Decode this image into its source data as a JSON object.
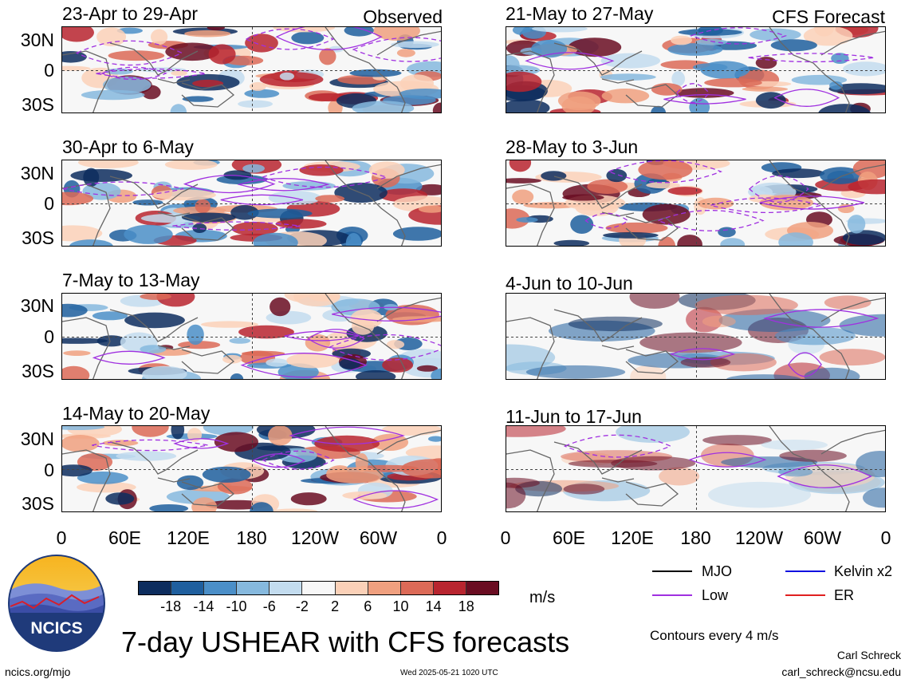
{
  "panels": {
    "observed": [
      {
        "dates": "23-Apr to 29-Apr"
      },
      {
        "dates": "30-Apr to 6-May"
      },
      {
        "dates": "7-May to 13-May"
      },
      {
        "dates": "14-May to 20-May"
      }
    ],
    "forecast": [
      {
        "dates": "21-May to 27-May"
      },
      {
        "dates": "28-May to 3-Jun"
      },
      {
        "dates": "4-Jun to 10-Jun"
      },
      {
        "dates": "11-Jun to 17-Jun"
      }
    ],
    "observed_tag": "Observed",
    "forecast_tag": "CFS Forecast"
  },
  "axes": {
    "lat_ticks": [
      "30N",
      "0",
      "30S"
    ],
    "lon_ticks": [
      "0",
      "60E",
      "120E",
      "180",
      "120W",
      "60W",
      "0"
    ]
  },
  "colorbar": {
    "labels": [
      "-18",
      "-14",
      "-10",
      "-6",
      "-2",
      "2",
      "6",
      "10",
      "14",
      "18"
    ],
    "colors": [
      "#0d2d5e",
      "#1f5f9e",
      "#4b8fc8",
      "#86b9de",
      "#c3dcef",
      "#f7f7f7",
      "#fbd1b8",
      "#f0a07f",
      "#dc6a57",
      "#b8252f",
      "#6a0d22"
    ],
    "unit": "m/s"
  },
  "legend": {
    "items": [
      {
        "label": "MJO",
        "color": "#000000"
      },
      {
        "label": "Kelvin x2",
        "color": "#1010e0"
      },
      {
        "label": "Low",
        "color": "#a030e0"
      },
      {
        "label": "ER",
        "color": "#e02020"
      }
    ],
    "contour_note": "Contours every 4 m/s"
  },
  "footer": {
    "main_title": "7-day USHEAR with CFS forecasts",
    "logo_text": "NCICS",
    "website": "ncics.org/mjo",
    "timestamp": "Wed 2025-05-21 1020 UTC",
    "author": "Carl Schreck",
    "email": "carl_schreck@ncsu.edu"
  }
}
